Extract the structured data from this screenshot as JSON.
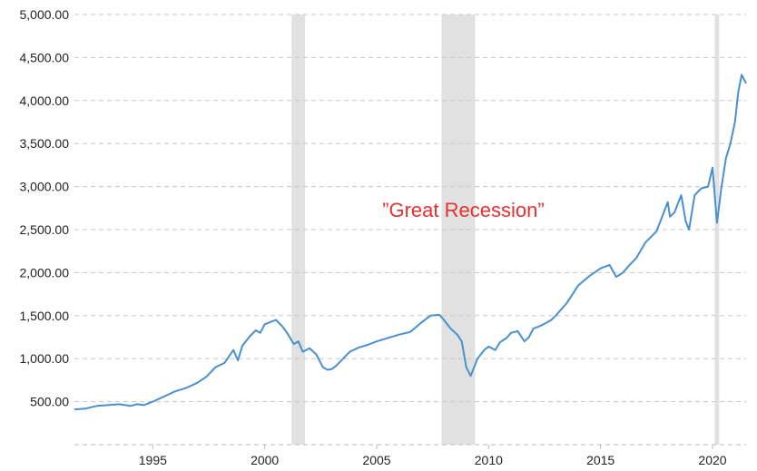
{
  "chart_data": {
    "type": "line",
    "title": "",
    "xlabel": "",
    "ylabel": "",
    "ylim": [
      0,
      5000
    ],
    "xlim": [
      1991.5,
      2021.5
    ],
    "grid": true,
    "y_ticks": [
      500,
      1000,
      1500,
      2000,
      2500,
      3000,
      3500,
      4000,
      4500,
      5000
    ],
    "y_tick_labels": [
      "500.00",
      "1,000.00",
      "1,500.00",
      "2,000.00",
      "2,500.00",
      "3,000.00",
      "3,500.00",
      "4,000.00",
      "4,500.00",
      "5,000.00"
    ],
    "x_ticks": [
      1995,
      2000,
      2005,
      2010,
      2015,
      2020
    ],
    "x_tick_labels": [
      "1995",
      "2000",
      "2005",
      "2010",
      "2015",
      "2020"
    ],
    "recessions": [
      {
        "start": 2001.2,
        "end": 2001.8
      },
      {
        "start": 2007.9,
        "end": 2009.4
      },
      {
        "start": 2020.1,
        "end": 2020.3
      }
    ],
    "annotation": {
      "text": "”Great Recession”",
      "color": "#e8302f"
    },
    "line_color": "#4a90cf",
    "recession_color": "#e1e1e1",
    "series": [
      {
        "x": [
          1991.5,
          1992.0,
          1992.5,
          1993.0,
          1993.5,
          1994.0,
          1994.3,
          1994.6,
          1995.0,
          1995.5,
          1996.0,
          1996.5,
          1997.0,
          1997.4,
          1997.8,
          1998.2,
          1998.6,
          1998.8,
          1999.0,
          1999.3,
          1999.6,
          1999.8,
          2000.0,
          2000.2,
          2000.5,
          2000.8,
          2001.0,
          2001.3,
          2001.5,
          2001.7,
          2002.0,
          2002.3,
          2002.6,
          2002.8,
          2003.0,
          2003.2,
          2003.5,
          2003.8,
          2004.2,
          2004.6,
          2005.0,
          2005.5,
          2006.0,
          2006.5,
          2007.0,
          2007.4,
          2007.8,
          2008.0,
          2008.3,
          2008.6,
          2008.8,
          2009.0,
          2009.2,
          2009.5,
          2009.8,
          2010.0,
          2010.3,
          2010.5,
          2010.8,
          2011.0,
          2011.3,
          2011.6,
          2011.8,
          2012.0,
          2012.3,
          2012.6,
          2012.8,
          2013.0,
          2013.5,
          2014.0,
          2014.5,
          2015.0,
          2015.4,
          2015.7,
          2016.0,
          2016.3,
          2016.6,
          2017.0,
          2017.5,
          2018.0,
          2018.1,
          2018.3,
          2018.6,
          2018.8,
          2018.95,
          2019.2,
          2019.5,
          2019.8,
          2020.0,
          2020.2,
          2020.4,
          2020.6,
          2020.8,
          2021.0,
          2021.15,
          2021.3,
          2021.5
        ],
        "values": [
          410,
          420,
          450,
          460,
          470,
          450,
          470,
          460,
          500,
          560,
          620,
          660,
          720,
          790,
          900,
          950,
          1100,
          980,
          1150,
          1250,
          1330,
          1300,
          1400,
          1420,
          1450,
          1370,
          1300,
          1170,
          1200,
          1080,
          1120,
          1050,
          900,
          870,
          880,
          920,
          1000,
          1080,
          1130,
          1160,
          1200,
          1240,
          1280,
          1310,
          1420,
          1500,
          1510,
          1450,
          1350,
          1280,
          1200,
          900,
          800,
          1000,
          1100,
          1140,
          1100,
          1190,
          1240,
          1300,
          1320,
          1200,
          1250,
          1350,
          1380,
          1420,
          1450,
          1500,
          1650,
          1850,
          1960,
          2050,
          2090,
          1950,
          2000,
          2090,
          2170,
          2350,
          2480,
          2820,
          2650,
          2700,
          2900,
          2600,
          2500,
          2900,
          2980,
          3000,
          3220,
          2580,
          3000,
          3330,
          3500,
          3750,
          4100,
          4300,
          4200
        ]
      }
    ]
  }
}
